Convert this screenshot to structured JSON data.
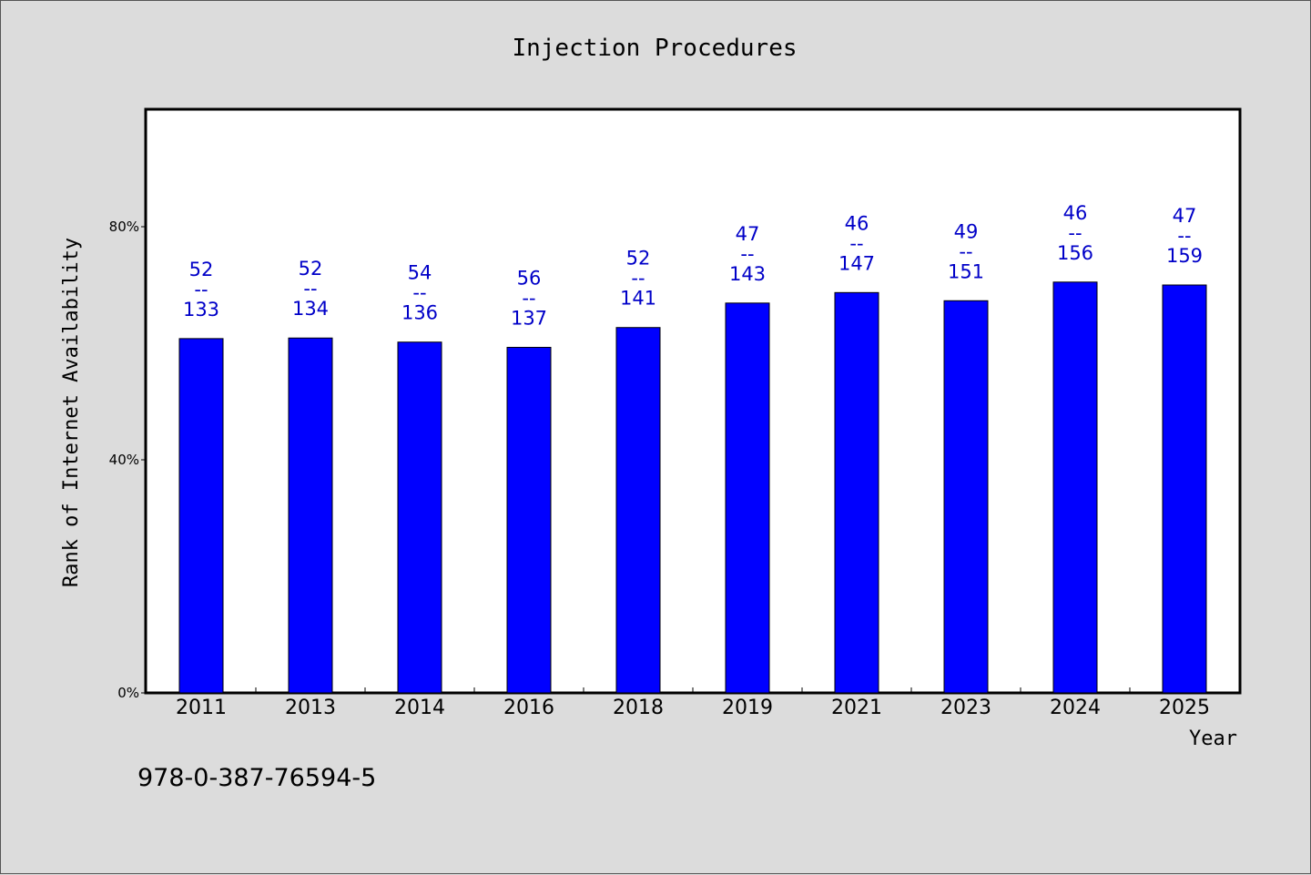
{
  "chart_data": {
    "type": "bar",
    "title": "Injection Procedures",
    "xlabel": "Year",
    "ylabel": "Rank of Internet Availability",
    "categories": [
      "2011",
      "2013",
      "2014",
      "2016",
      "2018",
      "2019",
      "2021",
      "2023",
      "2024",
      "2025"
    ],
    "values": [
      60.8,
      60.9,
      60.2,
      59.3,
      62.7,
      66.9,
      68.7,
      67.3,
      70.5,
      70.0
    ],
    "value_labels": [
      {
        "top": "52",
        "sep": "--",
        "bottom": "133"
      },
      {
        "top": "52",
        "sep": "--",
        "bottom": "134"
      },
      {
        "top": "54",
        "sep": "--",
        "bottom": "136"
      },
      {
        "top": "56",
        "sep": "--",
        "bottom": "137"
      },
      {
        "top": "52",
        "sep": "--",
        "bottom": "141"
      },
      {
        "top": "47",
        "sep": "--",
        "bottom": "143"
      },
      {
        "top": "46",
        "sep": "--",
        "bottom": "147"
      },
      {
        "top": "49",
        "sep": "--",
        "bottom": "151"
      },
      {
        "top": "46",
        "sep": "--",
        "bottom": "156"
      },
      {
        "top": "47",
        "sep": "--",
        "bottom": "159"
      }
    ],
    "yticks": [
      "0%",
      "40%",
      "80%"
    ],
    "ytick_values": [
      0,
      40,
      80
    ],
    "ylim": [
      0,
      100
    ],
    "grid": false,
    "legend": false,
    "colors": {
      "bar": "#0000ff",
      "label": "#0000c8",
      "background": "#dcdcdc",
      "plot": "#ffffff"
    }
  },
  "footer_code": "978-0-387-76594-5"
}
